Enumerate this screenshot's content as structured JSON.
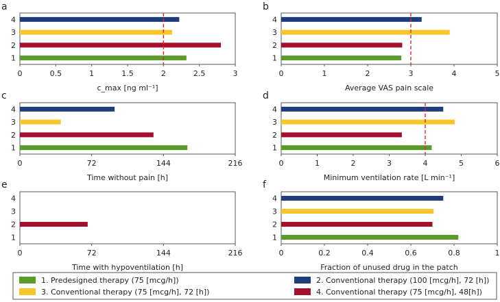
{
  "colors": {
    "t1": "#5b9b2b",
    "t2": "#1f3d7a",
    "t3": "#f7c62a",
    "t4": "#a50f2d",
    "threshold": "#e4262a"
  },
  "series_order": [
    "t1",
    "t4",
    "t3",
    "t2"
  ],
  "chart_data": [
    {
      "panel": "a",
      "type": "bar",
      "orientation": "horizontal",
      "xlabel": "c_max [ng ml⁻¹]",
      "xlim": [
        0,
        3
      ],
      "xticks": [
        0,
        0.5,
        1,
        1.5,
        2,
        2.5,
        3
      ],
      "xticklabels": [
        "0",
        "0.5",
        "1",
        "1.5",
        "2",
        "2.5",
        "3"
      ],
      "yticklabels": [
        "1",
        "2",
        "3",
        "4"
      ],
      "values": [
        2.32,
        2.8,
        2.12,
        2.22
      ],
      "threshold": 2
    },
    {
      "panel": "b",
      "type": "bar",
      "orientation": "horizontal",
      "xlabel": "Average VAS pain scale",
      "xlim": [
        0,
        5
      ],
      "xticks": [
        0,
        1,
        2,
        3,
        4,
        5
      ],
      "xticklabels": [
        "0",
        "1",
        "2",
        "3",
        "4",
        "5"
      ],
      "yticklabels": [
        "1",
        "2",
        "3",
        "4"
      ],
      "values": [
        2.78,
        2.8,
        3.9,
        3.25
      ],
      "threshold": 3
    },
    {
      "panel": "c",
      "type": "bar",
      "orientation": "horizontal",
      "xlabel": "Time without pain [h]",
      "xlim": [
        0,
        216
      ],
      "xticks": [
        0,
        72,
        144,
        216
      ],
      "xticklabels": [
        "0",
        "72",
        "144",
        "216"
      ],
      "yticklabels": [
        "1",
        "2",
        "3",
        "4"
      ],
      "values": [
        168,
        134,
        41,
        95
      ],
      "threshold": null
    },
    {
      "panel": "d",
      "type": "bar",
      "orientation": "horizontal",
      "xlabel": "Minimum ventilation rate [L min⁻¹]",
      "xlim": [
        0,
        6
      ],
      "xticks": [
        0,
        1,
        2,
        3,
        4,
        5,
        6
      ],
      "xticklabels": [
        "0",
        "1",
        "2",
        "3",
        "4",
        "5",
        "6"
      ],
      "yticklabels": [
        "1",
        "2",
        "3",
        "4"
      ],
      "values": [
        4.18,
        3.35,
        4.82,
        4.5
      ],
      "threshold": 4
    },
    {
      "panel": "e",
      "type": "bar",
      "orientation": "horizontal",
      "xlabel": "Time with hypoventilation [h]",
      "xlim": [
        0,
        216
      ],
      "xticks": [
        0,
        72,
        144,
        216
      ],
      "xticklabels": [
        "0",
        "72",
        "144",
        "216"
      ],
      "yticklabels": [
        "1",
        "2",
        "3",
        "4"
      ],
      "values": [
        0,
        68,
        0,
        0
      ],
      "threshold": null
    },
    {
      "panel": "f",
      "type": "bar",
      "orientation": "horizontal",
      "xlabel": "Fraction of unused drug in the patch",
      "xlim": [
        0,
        1
      ],
      "xticks": [
        0,
        0.2,
        0.4,
        0.6,
        0.8,
        1
      ],
      "xticklabels": [
        "0",
        "0.2",
        "0.4",
        "0.6",
        "0.8",
        "1"
      ],
      "yticklabels": [
        "1",
        "2",
        "3",
        "4"
      ],
      "values": [
        0.82,
        0.7,
        0.705,
        0.75
      ],
      "threshold": null
    }
  ],
  "legend": [
    {
      "key": "t1",
      "label": "1. Predesigned therapy (75 [mcg/h])"
    },
    {
      "key": "t2",
      "label": "2. Conventional therapy (100 [mcg/h], 72 [h])"
    },
    {
      "key": "t3",
      "label": "3. Conventional therapy (75 [mcg/h], 72 [h])"
    },
    {
      "key": "t4",
      "label": "4. Conventional therapy (75 [mcg/h], 48[h])"
    }
  ]
}
